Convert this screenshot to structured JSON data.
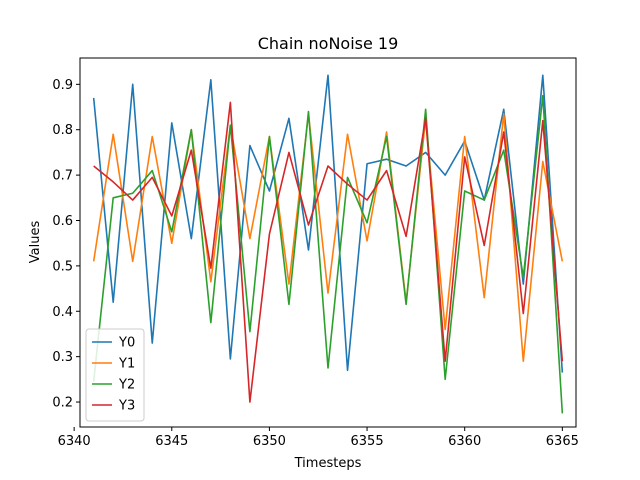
{
  "chart_data": {
    "type": "line",
    "title": "Chain noNoise 19",
    "xlabel": "Timesteps",
    "ylabel": "Values",
    "xlim": [
      6340.3,
      6365.7
    ],
    "ylim": [
      0.145,
      0.958
    ],
    "xticks": [
      6340,
      6345,
      6350,
      6355,
      6360,
      6365
    ],
    "yticks": [
      0.2,
      0.3,
      0.4,
      0.5,
      0.6,
      0.7,
      0.8,
      0.9
    ],
    "grid": false,
    "legend_position": "lower-left",
    "x": [
      6341,
      6342,
      6343,
      6344,
      6345,
      6346,
      6347,
      6348,
      6349,
      6350,
      6351,
      6352,
      6353,
      6354,
      6355,
      6356,
      6357,
      6358,
      6359,
      6360,
      6361,
      6362,
      6363,
      6364,
      6365
    ],
    "series": [
      {
        "name": "Y0",
        "color": "#1f77b4",
        "values": [
          0.87,
          0.42,
          0.9,
          0.33,
          0.815,
          0.56,
          0.91,
          0.295,
          0.765,
          0.665,
          0.825,
          0.535,
          0.92,
          0.27,
          0.725,
          0.735,
          0.72,
          0.75,
          0.7,
          0.775,
          0.645,
          0.845,
          0.46,
          0.92,
          0.265
        ]
      },
      {
        "name": "Y1",
        "color": "#ff7f0e",
        "values": [
          0.51,
          0.79,
          0.51,
          0.785,
          0.55,
          0.8,
          0.465,
          0.81,
          0.56,
          0.785,
          0.46,
          0.835,
          0.44,
          0.79,
          0.555,
          0.795,
          0.42,
          0.825,
          0.36,
          0.785,
          0.43,
          0.835,
          0.29,
          0.73,
          0.51
        ]
      },
      {
        "name": "Y2",
        "color": "#2ca02c",
        "values": [
          0.245,
          0.65,
          0.66,
          0.71,
          0.575,
          0.8,
          0.375,
          0.81,
          0.355,
          0.785,
          0.415,
          0.84,
          0.275,
          0.695,
          0.595,
          0.785,
          0.415,
          0.845,
          0.25,
          0.665,
          0.645,
          0.755,
          0.475,
          0.875,
          0.175
        ]
      },
      {
        "name": "Y3",
        "color": "#d62728",
        "values": [
          0.72,
          0.685,
          0.645,
          0.695,
          0.61,
          0.755,
          0.495,
          0.86,
          0.2,
          0.57,
          0.75,
          0.59,
          0.72,
          0.68,
          0.645,
          0.71,
          0.565,
          0.825,
          0.29,
          0.74,
          0.545,
          0.795,
          0.395,
          0.82,
          0.29
        ]
      }
    ]
  }
}
